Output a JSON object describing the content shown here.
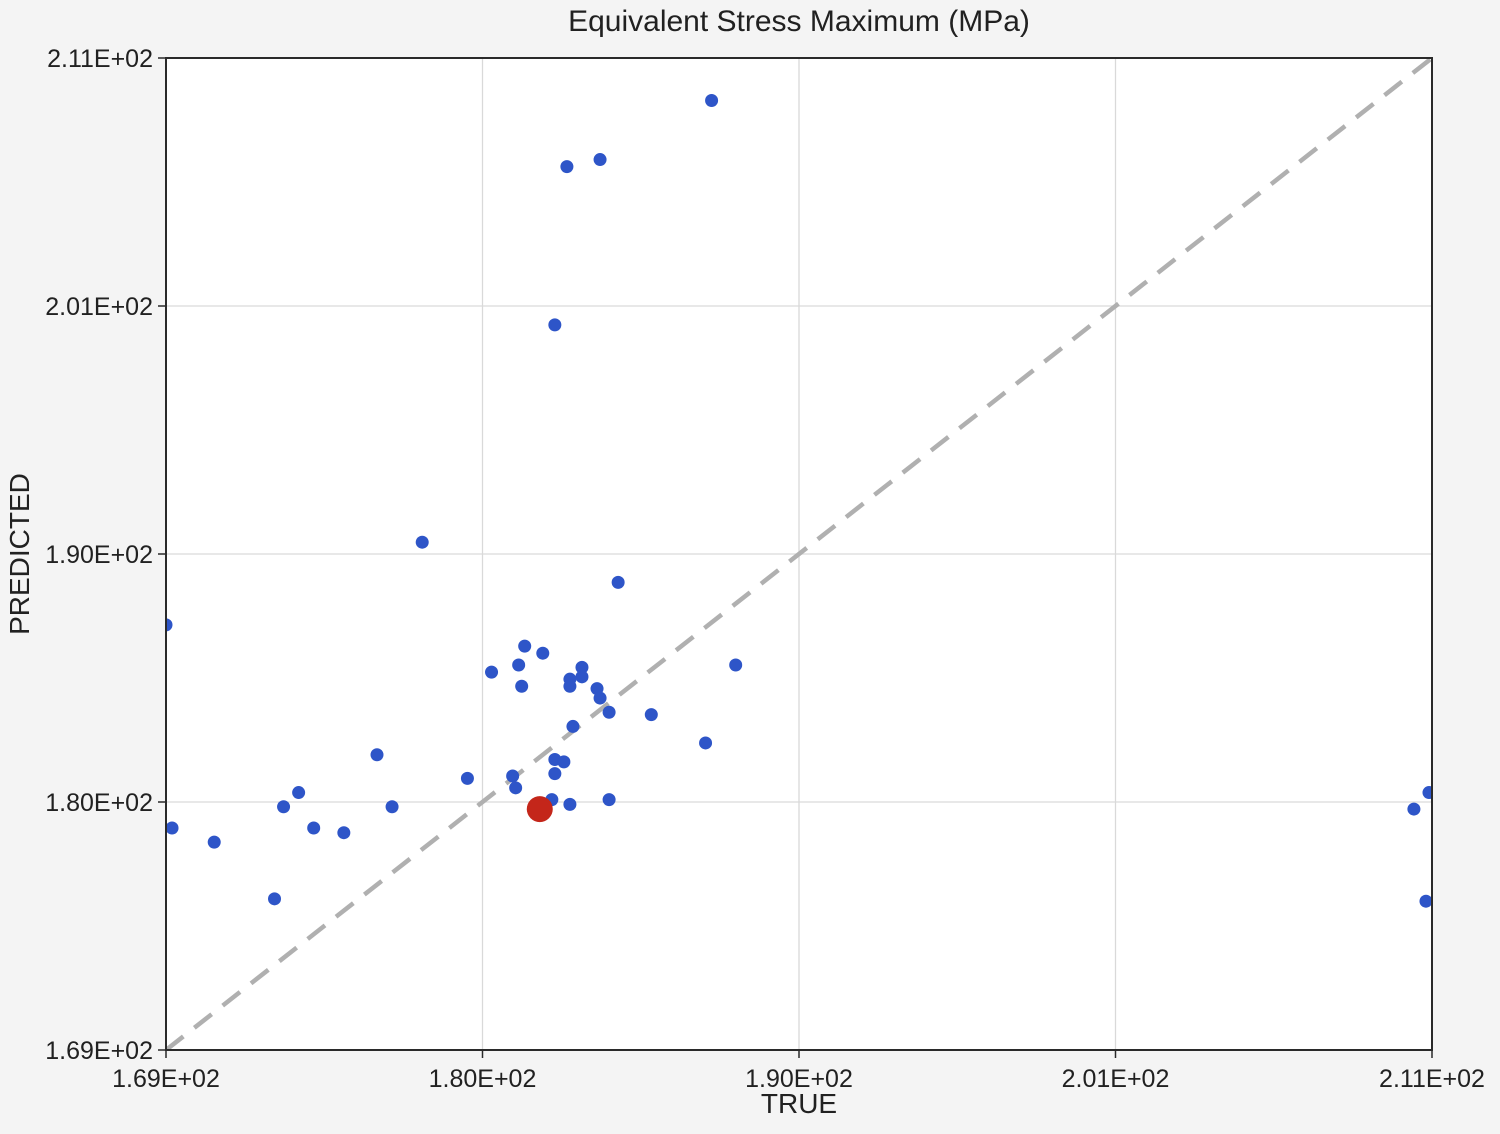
{
  "colors": {
    "figure_background": "#f4f4f4",
    "plot_background": "#ffffff",
    "grid": "#d9d9d9",
    "spine": "#2a2a2a",
    "identity_line": "#b0b0b0",
    "point": "#2e55c8",
    "highlight": "#c4261a",
    "text": "#212121"
  },
  "chart_data": {
    "type": "scatter",
    "title": "Equivalent Stress Maximum (MPa)",
    "xlabel": "TRUE",
    "ylabel": "PREDICTED",
    "xlim": [
      169,
      211
    ],
    "ylim": [
      169,
      211
    ],
    "grid": true,
    "legend": false,
    "x_tick_values": [
      169,
      179.5,
      190,
      200.5,
      211
    ],
    "x_tick_labels": [
      "1.69E+02",
      "1.80E+02",
      "1.90E+02",
      "2.01E+02",
      "2.11E+02"
    ],
    "y_tick_values": [
      169,
      179.5,
      190,
      200.5,
      211
    ],
    "y_tick_labels": [
      "1.69E+02",
      "1.80E+02",
      "1.90E+02",
      "2.01E+02",
      "2.11E+02"
    ],
    "reference_line": {
      "kind": "y=x",
      "from": 169,
      "to": 211,
      "style": "dashed",
      "color": "#b0b0b0"
    },
    "series": [
      {
        "name": "predicted-vs-true",
        "marker": "circle",
        "radius": 6.5,
        "color": "#2e55c8",
        "points": [
          [
            187.1,
            209.2
          ],
          [
            182.3,
            206.4
          ],
          [
            183.4,
            206.7
          ],
          [
            181.9,
            199.7
          ],
          [
            177.5,
            190.5
          ],
          [
            184.0,
            188.8
          ],
          [
            169.0,
            187.0
          ],
          [
            180.9,
            186.1
          ],
          [
            181.5,
            185.8
          ],
          [
            180.7,
            185.3
          ],
          [
            179.8,
            185.0
          ],
          [
            182.8,
            185.2
          ],
          [
            182.8,
            184.8
          ],
          [
            182.4,
            184.7
          ],
          [
            182.4,
            184.4
          ],
          [
            180.8,
            184.4
          ],
          [
            183.3,
            184.3
          ],
          [
            183.4,
            183.9
          ],
          [
            183.7,
            183.3
          ],
          [
            185.1,
            183.2
          ],
          [
            187.9,
            185.3
          ],
          [
            186.9,
            182.0
          ],
          [
            182.5,
            182.7
          ],
          [
            181.9,
            181.3
          ],
          [
            182.2,
            181.2
          ],
          [
            181.9,
            180.7
          ],
          [
            180.5,
            180.6
          ],
          [
            179.0,
            180.5
          ],
          [
            180.6,
            180.1
          ],
          [
            181.8,
            179.6
          ],
          [
            182.4,
            179.4
          ],
          [
            183.7,
            179.6
          ],
          [
            176.0,
            181.5
          ],
          [
            173.4,
            179.9
          ],
          [
            172.9,
            179.3
          ],
          [
            176.5,
            179.3
          ],
          [
            173.9,
            178.4
          ],
          [
            174.9,
            178.2
          ],
          [
            169.2,
            178.4
          ],
          [
            170.6,
            177.8
          ],
          [
            172.6,
            175.4
          ],
          [
            210.9,
            179.9
          ],
          [
            210.4,
            179.2
          ],
          [
            210.8,
            175.3
          ]
        ]
      },
      {
        "name": "highlighted-point",
        "marker": "circle",
        "radius": 13,
        "color": "#c4261a",
        "points": [
          [
            181.4,
            179.2
          ]
        ]
      }
    ]
  }
}
